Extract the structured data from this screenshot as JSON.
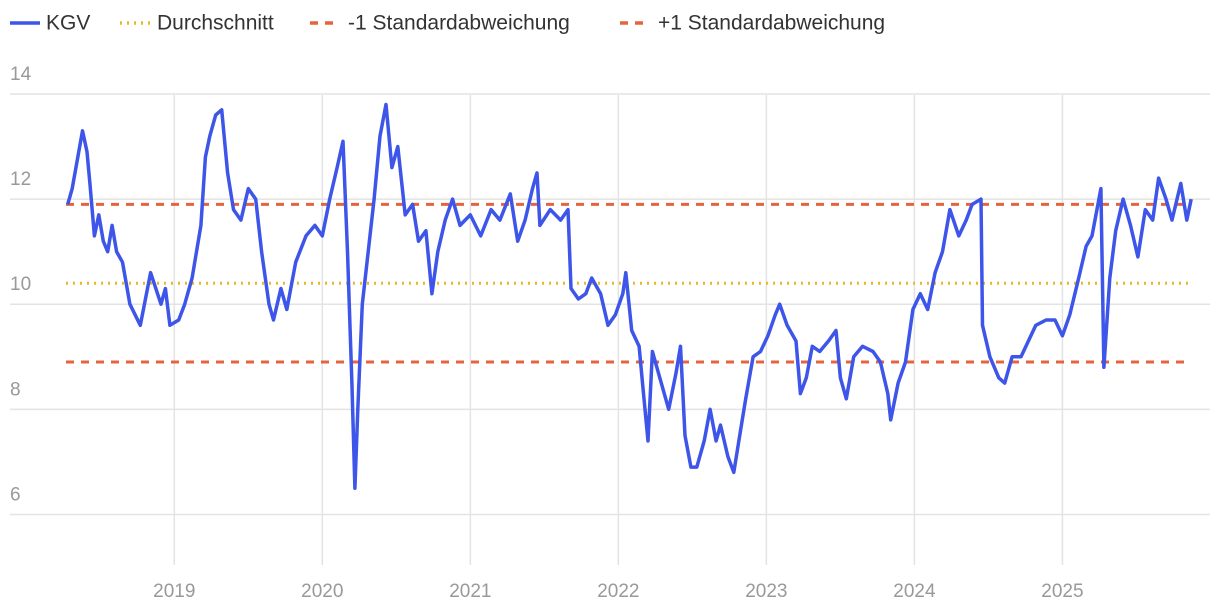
{
  "chart_data": {
    "type": "line",
    "x": [
      2018.28,
      2018.31,
      2018.38,
      2018.41,
      2018.43,
      2018.46,
      2018.49,
      2018.52,
      2018.55,
      2018.58,
      2018.61,
      2018.65,
      2018.7,
      2018.77,
      2018.84,
      2018.91,
      2018.94,
      2018.97,
      2019.03,
      2019.07,
      2019.12,
      2019.18,
      2019.21,
      2019.24,
      2019.28,
      2019.32,
      2019.36,
      2019.4,
      2019.45,
      2019.5,
      2019.55,
      2019.59,
      2019.64,
      2019.67,
      2019.72,
      2019.76,
      2019.82,
      2019.89,
      2019.95,
      2020.0,
      2020.05,
      2020.1,
      2020.14,
      2020.17,
      2020.2,
      2020.22,
      2020.24,
      2020.27,
      2020.31,
      2020.35,
      2020.39,
      2020.43,
      2020.47,
      2020.51,
      2020.56,
      2020.61,
      2020.65,
      2020.7,
      2020.74,
      2020.78,
      2020.83,
      2020.88,
      2020.93,
      2021.0,
      2021.07,
      2021.14,
      2021.2,
      2021.27,
      2021.32,
      2021.37,
      2021.42,
      2021.45,
      2021.47,
      2021.54,
      2021.61,
      2021.66,
      2021.68,
      2021.73,
      2021.78,
      2021.82,
      2021.88,
      2021.93,
      2021.98,
      2022.03,
      2022.05,
      2022.09,
      2022.14,
      2022.17,
      2022.2,
      2022.23,
      2022.28,
      2022.34,
      2022.39,
      2022.42,
      2022.45,
      2022.49,
      2022.53,
      2022.58,
      2022.62,
      2022.66,
      2022.69,
      2022.74,
      2022.78,
      2022.82,
      2022.86,
      2022.91,
      2022.96,
      2023.01,
      2023.06,
      2023.09,
      2023.14,
      2023.2,
      2023.23,
      2023.27,
      2023.31,
      2023.36,
      2023.42,
      2023.47,
      2023.5,
      2023.54,
      2023.59,
      2023.65,
      2023.72,
      2023.77,
      2023.82,
      2023.84,
      2023.89,
      2023.94,
      2023.99,
      2024.04,
      2024.09,
      2024.14,
      2024.19,
      2024.24,
      2024.3,
      2024.35,
      2024.39,
      2024.45,
      2024.46,
      2024.51,
      2024.57,
      2024.61,
      2024.66,
      2024.72,
      2024.77,
      2024.82,
      2024.89,
      2024.95,
      2025.0,
      2025.05,
      2025.11,
      2025.16,
      2025.2,
      2025.26,
      2025.28,
      2025.32,
      2025.36,
      2025.41,
      2025.46,
      2025.51,
      2025.56,
      2025.61,
      2025.65,
      2025.7,
      2025.74,
      2025.8,
      2025.84,
      2025.87
    ],
    "series": [
      {
        "name": "KGV",
        "color": "#3d55e8",
        "values": [
          11.9,
          12.2,
          13.3,
          12.9,
          12.3,
          11.3,
          11.7,
          11.2,
          11.0,
          11.5,
          11.0,
          10.8,
          10.0,
          9.6,
          10.6,
          10.0,
          10.3,
          9.6,
          9.7,
          10.0,
          10.5,
          11.5,
          12.8,
          13.2,
          13.6,
          13.7,
          12.5,
          11.8,
          11.6,
          12.2,
          12.0,
          11.0,
          10.0,
          9.7,
          10.3,
          9.9,
          10.8,
          11.3,
          11.5,
          11.3,
          12.0,
          12.6,
          13.1,
          11.0,
          8.5,
          6.5,
          8.0,
          10.0,
          11.0,
          12.0,
          13.2,
          13.8,
          12.6,
          13.0,
          11.7,
          11.9,
          11.2,
          11.4,
          10.2,
          11.0,
          11.6,
          12.0,
          11.5,
          11.7,
          11.3,
          11.8,
          11.6,
          12.1,
          11.2,
          11.6,
          12.2,
          12.5,
          11.5,
          11.8,
          11.6,
          11.8,
          10.3,
          10.1,
          10.2,
          10.5,
          10.2,
          9.6,
          9.8,
          10.2,
          10.6,
          9.5,
          9.2,
          8.3,
          7.4,
          9.1,
          8.6,
          8.0,
          8.7,
          9.2,
          7.5,
          6.9,
          6.9,
          7.4,
          8.0,
          7.4,
          7.7,
          7.1,
          6.8,
          7.5,
          8.2,
          9.0,
          9.1,
          9.4,
          9.8,
          10.0,
          9.6,
          9.3,
          8.3,
          8.6,
          9.2,
          9.1,
          9.3,
          9.5,
          8.6,
          8.2,
          9.0,
          9.2,
          9.1,
          8.9,
          8.3,
          7.8,
          8.5,
          8.9,
          9.9,
          10.2,
          9.9,
          10.6,
          11.0,
          11.8,
          11.3,
          11.6,
          11.9,
          12.0,
          9.6,
          9.0,
          8.6,
          8.5,
          9.0,
          9.0,
          9.3,
          9.6,
          9.7,
          9.7,
          9.4,
          9.8,
          10.5,
          11.1,
          11.3,
          12.2,
          8.8,
          10.5,
          11.4,
          12.0,
          11.5,
          10.9,
          11.8,
          11.6,
          12.4,
          12.0,
          11.6,
          12.3,
          11.6,
          12.0
        ]
      }
    ],
    "reference_lines": [
      {
        "name": "Durchschnitt",
        "value": 10.4,
        "color": "#e8b92a",
        "dash": "dotted"
      },
      {
        "name": "-1 Standardabweichung",
        "value": 8.9,
        "color": "#e5643f",
        "dash": "dashed"
      },
      {
        "name": "+1 Standardabweichung",
        "value": 11.9,
        "color": "#e5643f",
        "dash": "dashed"
      }
    ],
    "xlim": [
      2017.89,
      2025.97
    ],
    "xticks": [
      2019,
      2020,
      2021,
      2022,
      2023,
      2024,
      2025
    ],
    "ylim": [
      5,
      14.4
    ],
    "yticks": [
      6,
      8,
      10,
      12,
      14
    ],
    "grid": true
  }
}
